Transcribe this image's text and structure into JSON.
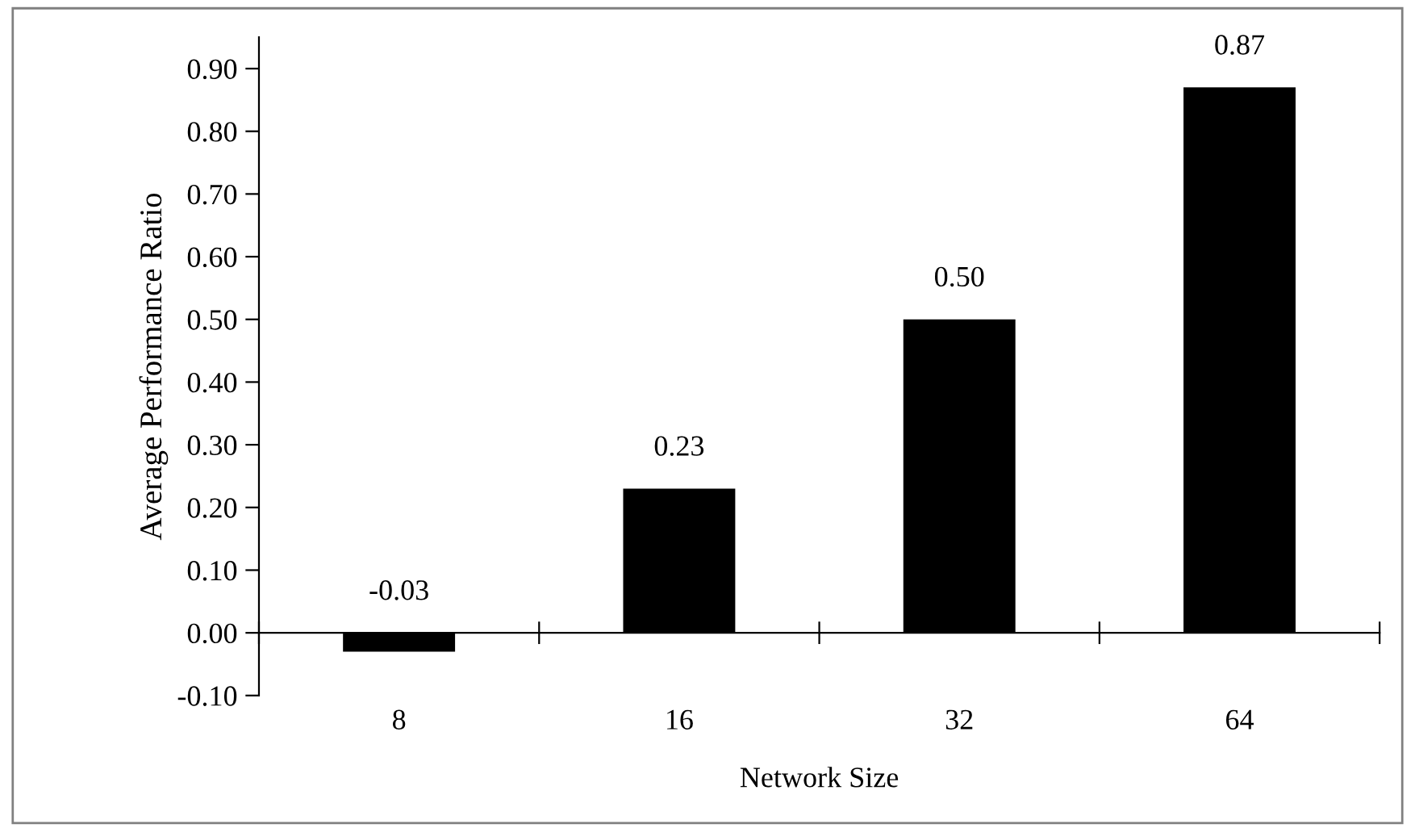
{
  "chart_data": {
    "type": "bar",
    "xlabel": "Network Size",
    "ylabel": "Average Performance Ratio",
    "categories": [
      "8",
      "16",
      "32",
      "64"
    ],
    "values": [
      -0.03,
      0.23,
      0.5,
      0.87
    ],
    "value_labels": [
      "-0.03",
      "0.23",
      "0.50",
      "0.87"
    ],
    "color": "#000000",
    "ylim": [
      -0.1,
      0.95
    ],
    "yticks": [
      {
        "value": -0.1,
        "label": "-0.10"
      },
      {
        "value": 0.0,
        "label": "0.00"
      },
      {
        "value": 0.1,
        "label": "0.10"
      },
      {
        "value": 0.2,
        "label": "0.20"
      },
      {
        "value": 0.3,
        "label": "0.30"
      },
      {
        "value": 0.4,
        "label": "0.40"
      },
      {
        "value": 0.5,
        "label": "0.50"
      },
      {
        "value": 0.6,
        "label": "0.60"
      },
      {
        "value": 0.7,
        "label": "0.70"
      },
      {
        "value": 0.8,
        "label": "0.80"
      },
      {
        "value": 0.9,
        "label": "0.90"
      }
    ],
    "legend": false
  }
}
